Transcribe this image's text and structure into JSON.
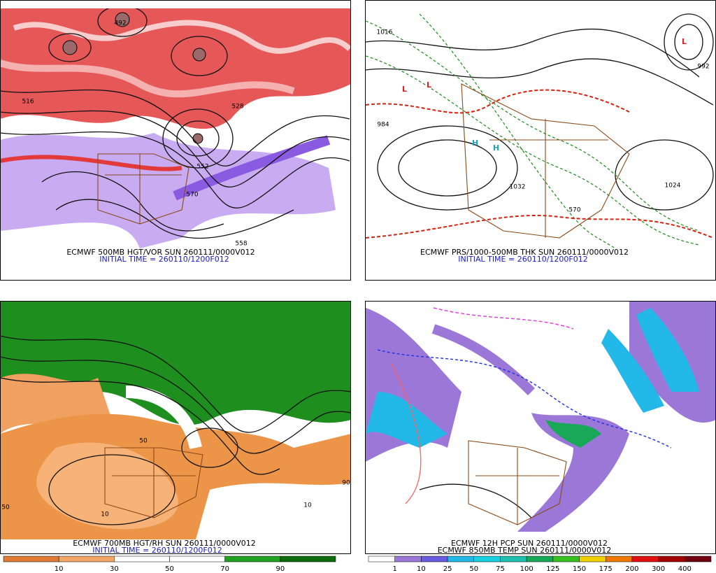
{
  "panels": [
    {
      "lines": [
        "ECMWF 500MB HGT/VOR SUN 260111/0000V012",
        "INITIAL TIME = 260110/1200F012"
      ],
      "contour_labels": [
        "492",
        "516",
        "528",
        "552",
        "570",
        "558"
      ]
    },
    {
      "lines": [
        "ECMWF PRS/1000-500MB THK SUN 260111/0000V012",
        "INITIAL TIME = 260110/1200F012"
      ],
      "contour_labels": [
        "1016",
        "984",
        "1024",
        "1032",
        "570",
        "992"
      ]
    },
    {
      "lines": [
        "ECMWF 700MB HGT/RH SUN 260111/0000V012",
        "INITIAL TIME = 260110/1200F012"
      ],
      "contour_labels": [
        "10",
        "50",
        "90",
        "10",
        "50"
      ]
    },
    {
      "lines": [
        "ECMWF 12H PCP SUN 260111/0000V012",
        "ECMWF 850MB TEMP SUN 260111/0000V012"
      ],
      "contour_labels": []
    }
  ],
  "colorbars": [
    {
      "labels": [
        10,
        30,
        50,
        70,
        90
      ],
      "colors": [
        "#e07a35",
        "#f3a866",
        "#ffffff",
        "#ffffff",
        "#22a022",
        "#0d6a0d"
      ]
    },
    {
      "labels": [
        1,
        10,
        25,
        50,
        75,
        100,
        125,
        150,
        175,
        200,
        300,
        400
      ],
      "colors": [
        "#ffffff",
        "#9b78d8",
        "#6a5ce0",
        "#22b8e8",
        "#18d0e0",
        "#20c0b0",
        "#18a858",
        "#38c020",
        "#f0d000",
        "#f07800",
        "#e01010",
        "#a00000",
        "#700010"
      ]
    }
  ]
}
